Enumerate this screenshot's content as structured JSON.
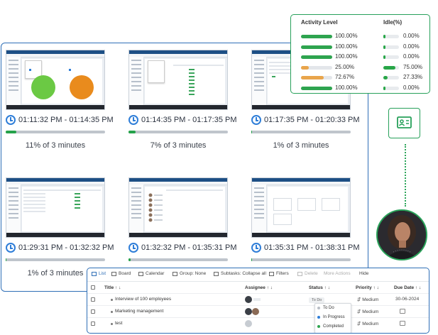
{
  "screenshots": [
    {
      "time_range": "01:11:32 PM - 01:14:35 PM",
      "activity": "11% of 3 minutes",
      "progress": 0.11
    },
    {
      "time_range": "01:14:35 PM - 01:17:35 PM",
      "activity": "7% of 3 minutes",
      "progress": 0.07
    },
    {
      "time_range": "01:17:35 PM - 01:20:33 PM",
      "activity": "1% of 3 minutes",
      "progress": 0.01
    },
    {
      "time_range": "01:29:31 PM - 01:32:32 PM",
      "activity": "1% of 3 minutes",
      "progress": 0.01
    },
    {
      "time_range": "01:32:32 PM - 01:35:31 PM",
      "activity": "",
      "progress": 0.02
    },
    {
      "time_range": "01:35:31 PM - 01:38:31 PM",
      "activity": "",
      "progress": 0.01
    }
  ],
  "activity_card": {
    "headers": {
      "activity": "Activity Level",
      "idle": "Idle(%)"
    },
    "rows": [
      {
        "activity": "100.00%",
        "activity_value": 100,
        "idle": "0.00%",
        "idle_value": 0,
        "color": "#2ea44f"
      },
      {
        "activity": "100.00%",
        "activity_value": 100,
        "idle": "0.00%",
        "idle_value": 0,
        "color": "#2ea44f"
      },
      {
        "activity": "100.00%",
        "activity_value": 100,
        "idle": "0.00%",
        "idle_value": 0,
        "color": "#2ea44f"
      },
      {
        "activity": "25.00%",
        "activity_value": 25,
        "idle": "75.00%",
        "idle_value": 75,
        "color": "#e9a54b"
      },
      {
        "activity": "72.67%",
        "activity_value": 72.67,
        "idle": "27.33%",
        "idle_value": 27.33,
        "color": "#e9a54b"
      },
      {
        "activity": "100.00%",
        "activity_value": 100,
        "idle": "0.00%",
        "idle_value": 0,
        "color": "#2ea44f"
      }
    ]
  },
  "tasks": {
    "toolbar": {
      "list": "List",
      "board": "Board",
      "calendar": "Calendar",
      "group": "Group: None",
      "subtasks": "Subtasks: Collapse all",
      "filters": "Filters",
      "delete": "Delete",
      "more": "More Actions",
      "hide": "Hide"
    },
    "columns": {
      "title": "Title ↑ ↓",
      "assignee": "Assignee ↑ ↓",
      "status": "Status ↑ ↓",
      "priority": "Priority ↑ ↓",
      "due": "Due Date ↑ ↓"
    },
    "rows": [
      {
        "title": "Interview of 100 employees",
        "status": "To Do",
        "priority": "Medium",
        "due": "30-06-2024"
      },
      {
        "title": "Marketing management",
        "status": "",
        "priority": "Medium",
        "due": ""
      },
      {
        "title": "test",
        "status": "",
        "priority": "Medium",
        "due": ""
      }
    ],
    "status_options": [
      {
        "label": "To Do",
        "color": "#b8bec6"
      },
      {
        "label": "In Progress",
        "color": "#2f7ed8"
      },
      {
        "label": "Completed",
        "color": "#2ea44f"
      }
    ]
  },
  "colors": {
    "accent_blue": "#2f6fb7",
    "accent_green": "#27a05a"
  }
}
